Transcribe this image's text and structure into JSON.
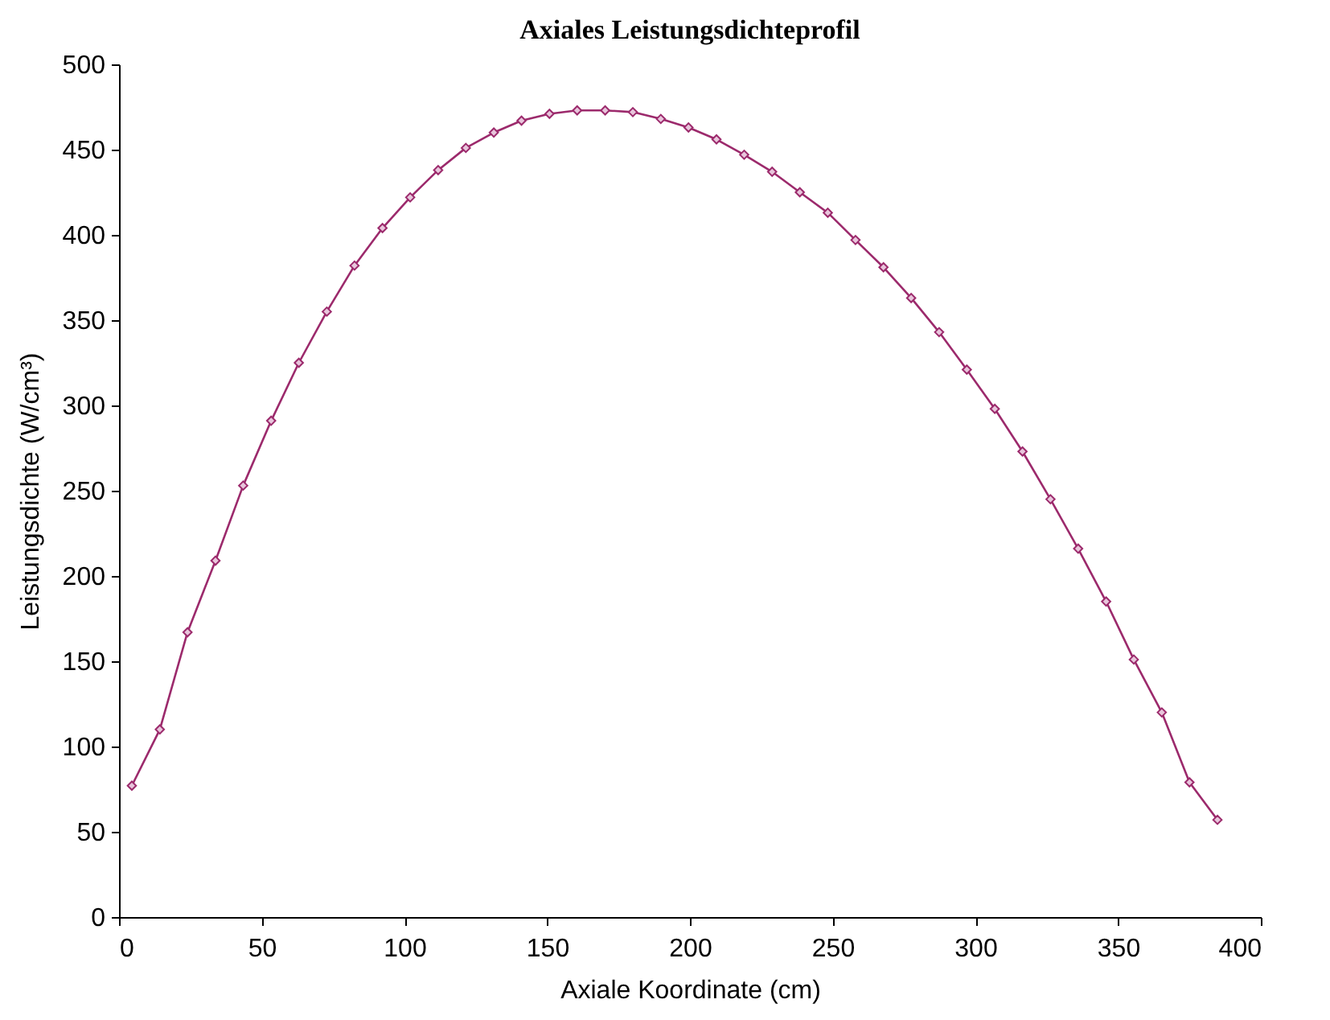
{
  "chart_data": {
    "type": "line",
    "title": "Axiales Leistungsdichteprofil",
    "xlabel": "Axiale Koordinate (cm)",
    "ylabel": "Leistungsdichte (W/cm³)",
    "x": [
      4.5,
      14.3,
      24,
      33.8,
      43.5,
      53.3,
      63,
      72.8,
      82.5,
      92.3,
      102,
      111.8,
      121.5,
      131.3,
      141,
      150.8,
      160.5,
      170.3,
      180,
      189.8,
      199.5,
      209.3,
      219,
      228.8,
      238.5,
      248.3,
      258,
      267.8,
      277.5,
      287.3,
      297,
      306.8,
      316.5,
      326.3,
      336,
      345.8,
      355.5,
      365.3,
      375,
      384.8
    ],
    "series": [
      {
        "color": "#9c2a6c",
        "values": [
          77,
          110,
          167,
          209,
          253,
          291,
          325,
          355,
          382,
          404,
          422,
          438,
          451,
          460,
          467,
          471,
          473,
          473,
          472,
          468,
          463,
          456,
          447,
          437,
          425,
          413,
          397,
          381,
          363,
          343,
          321,
          298,
          273,
          245,
          216,
          185,
          151,
          120,
          79,
          57
        ]
      }
    ],
    "xlim": [
      0,
      400
    ],
    "xticks": [
      0,
      50,
      100,
      150,
      200,
      250,
      300,
      350,
      400
    ],
    "ylim": [
      0,
      500
    ],
    "yticks": [
      0,
      50,
      100,
      150,
      200,
      250,
      300,
      350,
      400,
      450,
      500
    ],
    "marker": "diamond",
    "grid": false,
    "legend": false
  }
}
